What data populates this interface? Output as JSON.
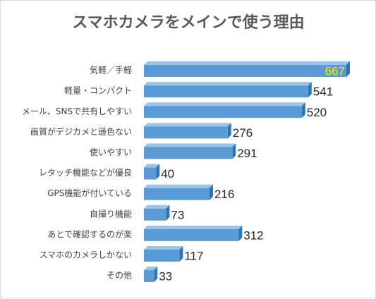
{
  "chart_data": {
    "type": "bar",
    "orientation": "horizontal",
    "title": "スマホカメラをメインで使う理由",
    "categories": [
      "気軽／手軽",
      "軽量・コンパクト",
      "メール、SNSで共有しやすい",
      "画質がデジカメと遜色ない",
      "使いやすい",
      "レタッチ機能などが優良",
      "GPS機能が付いている",
      "自撮り機能",
      "あとで確認するのが楽",
      "スマホのカメラしかない",
      "その他"
    ],
    "values": [
      667,
      541,
      520,
      276,
      291,
      40,
      216,
      73,
      312,
      117,
      33
    ],
    "xlim": [
      0,
      667
    ],
    "grid": false,
    "legend": "none",
    "colors": {
      "bar_front": "#5b9bd5",
      "bar_top": "#9dc3e6",
      "bar_side": "#2e75b6",
      "highlight_label": "#f2f200",
      "title": "#595959"
    },
    "highlighted_value_index": 0
  }
}
